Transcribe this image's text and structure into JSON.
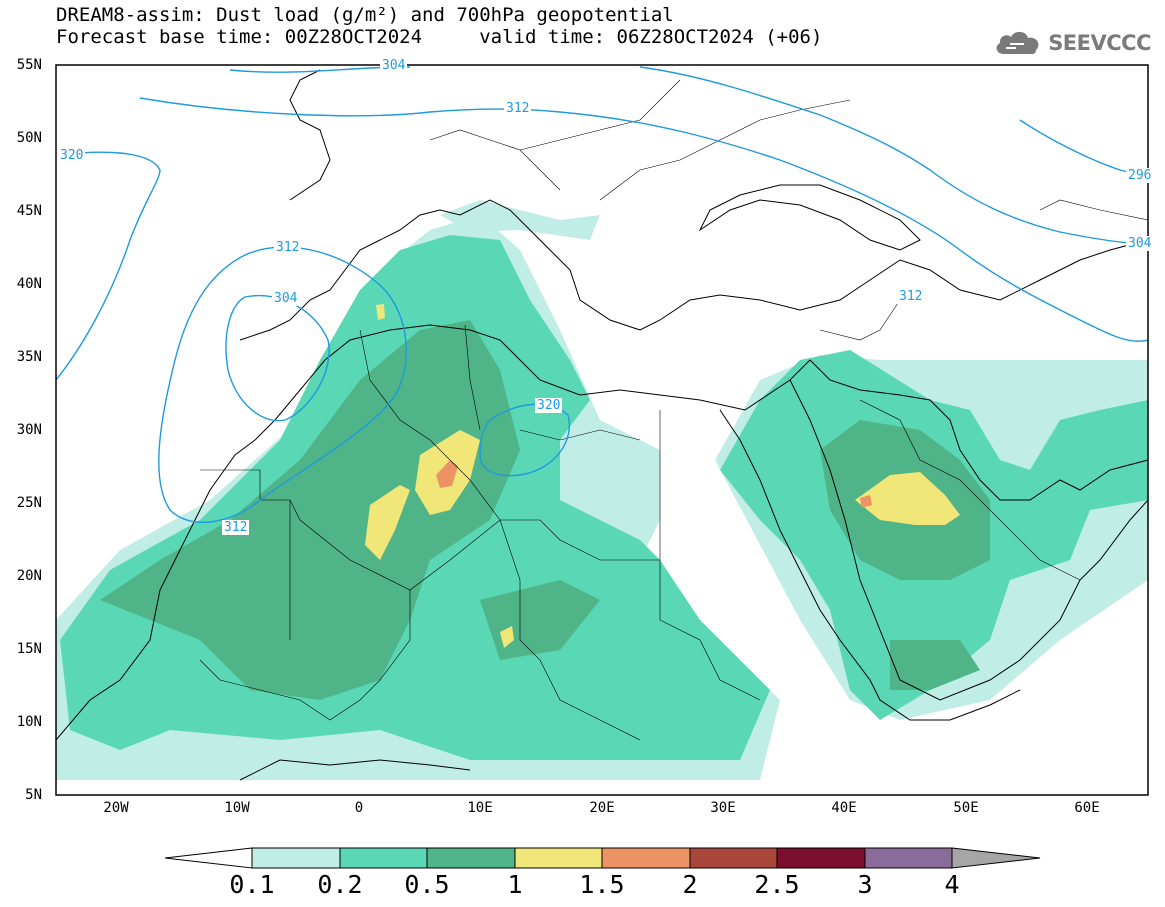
{
  "header": {
    "line1": "DREAM8-assim: Dust load (g/m²) and 700hPa geopotential",
    "line2": "Forecast base time: 00Z28OCT2024     valid time: 06Z28OCT2024 (+06)"
  },
  "logo": {
    "text": "SEEVCCC",
    "icon": "cloud-icon"
  },
  "map": {
    "lon_range": [
      -25,
      65
    ],
    "lat_range": [
      5,
      55
    ],
    "lat_labels": [
      "55N",
      "50N",
      "45N",
      "40N",
      "35N",
      "30N",
      "25N",
      "20N",
      "15N",
      "10N",
      "5N"
    ],
    "lon_labels": [
      "20W",
      "10W",
      "0",
      "10E",
      "20E",
      "30E",
      "40E",
      "50E",
      "60E"
    ],
    "contour_labels": [
      "304",
      "312",
      "320",
      "312",
      "304",
      "320",
      "312",
      "312",
      "296",
      "304"
    ],
    "contour_color": "#1d9ae0",
    "coastline_color": "#000000"
  },
  "colorbar": {
    "ticks": [
      "0.1",
      "0.2",
      "0.5",
      "1",
      "1.5",
      "2",
      "2.5",
      "3",
      "4"
    ],
    "colors": [
      "#c0ede6",
      "#5ad7b4",
      "#4fb487",
      "#f0e778",
      "#eb9365",
      "#a9473b",
      "#7b0f2f",
      "#8a6c9a",
      "#a6a6a6"
    ]
  }
}
